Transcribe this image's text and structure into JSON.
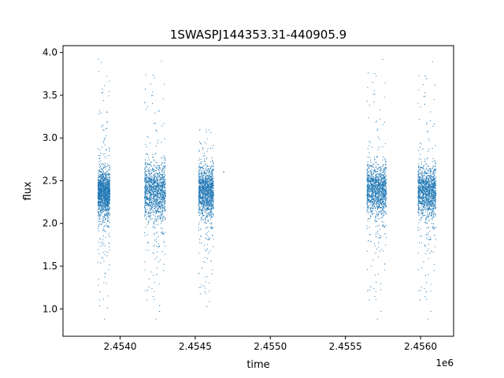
{
  "chart_data": {
    "type": "scatter",
    "title": "1SWASPJ144353.31-440905.9",
    "xlabel": "time",
    "ylabel": "flux",
    "x_offset_label": "1e6",
    "xlim": [
      2.45362,
      2.45622
    ],
    "ylim": [
      0.68,
      4.08
    ],
    "x_ticks": [
      {
        "value": 2.454,
        "label": "2.4540"
      },
      {
        "value": 2.4545,
        "label": "2.4545"
      },
      {
        "value": 2.455,
        "label": "2.4550"
      },
      {
        "value": 2.4555,
        "label": "2.4555"
      },
      {
        "value": 2.456,
        "label": "2.4560"
      }
    ],
    "y_ticks": [
      {
        "value": 1.0,
        "label": "1.0"
      },
      {
        "value": 1.5,
        "label": "1.5"
      },
      {
        "value": 2.0,
        "label": "2.0"
      },
      {
        "value": 2.5,
        "label": "2.5"
      },
      {
        "value": 3.0,
        "label": "3.0"
      },
      {
        "value": 3.5,
        "label": "3.5"
      },
      {
        "value": 4.0,
        "label": "4.0"
      }
    ],
    "grid": false,
    "marker_color": "#1f77b4",
    "series": [
      {
        "clusters": [
          {
            "x_start": 2.45385,
            "x_end": 2.45393,
            "flux_median": 2.36,
            "flux_core_min": 2.02,
            "flux_core_max": 2.66,
            "flux_min": 0.84,
            "flux_max": 3.99
          },
          {
            "x_start": 2.45416,
            "x_end": 2.4543,
            "flux_median": 2.38,
            "flux_core_min": 2.02,
            "flux_core_max": 2.82,
            "flux_min": 0.84,
            "flux_max": 3.95
          },
          {
            "x_start": 2.45452,
            "x_end": 2.45462,
            "flux_median": 2.38,
            "flux_core_min": 2.02,
            "flux_core_max": 2.72,
            "flux_min": 1.0,
            "flux_max": 3.1
          },
          {
            "x_start": 2.45564,
            "x_end": 2.45577,
            "flux_median": 2.4,
            "flux_core_min": 2.02,
            "flux_core_max": 2.72,
            "flux_min": 0.84,
            "flux_max": 3.97
          },
          {
            "x_start": 2.45598,
            "x_end": 2.4561,
            "flux_median": 2.38,
            "flux_core_min": 2.02,
            "flux_core_max": 2.72,
            "flux_min": 0.84,
            "flux_max": 3.94
          }
        ]
      }
    ],
    "stray_points": [
      {
        "x": 2.45469,
        "y": 2.6
      }
    ]
  }
}
